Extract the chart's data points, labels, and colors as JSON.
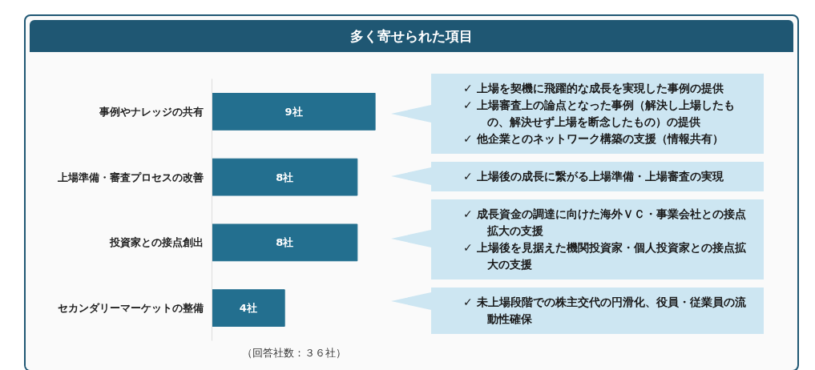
{
  "chart_data": {
    "type": "bar",
    "orientation": "horizontal",
    "title": "多く寄せられた項目",
    "categories": [
      "事例やナレッジの共有",
      "上場準備・審査プロセスの改善",
      "投資家との接点創出",
      "セカンダリーマーケットの整備"
    ],
    "values": [
      9,
      8,
      8,
      4
    ],
    "color": "#236f8f",
    "value_labels": [
      "9社",
      "8社",
      "8社",
      "4社"
    ],
    "xlim": [
      0,
      9
    ],
    "tick_labels": "y",
    "grid": false,
    "annotations": [
      "✓ 上場を契機に飛躍的な成長を実現した事例の提供\n✓ 上場審査上の論点となった事例（解決し上場したもの、解決せず上場を断念したもの）の提供\n✓ 他企業とのネットワーク構築の支援（情報共有）",
      "✓ 上場後の成長に繋がる上場準備・上場審査の実現",
      "✓ 成長資金の調達に向けた海外ＶＣ・事業会社との接点拡大の支援\n✓ 上場後を見据えた機関投資家・個人投資家との接点拡大の支援",
      "✓ 未上場段階での株主交代の円滑化、役員・従業員の流動性確保",
      "（回答社数：３６社）"
    ]
  }
}
